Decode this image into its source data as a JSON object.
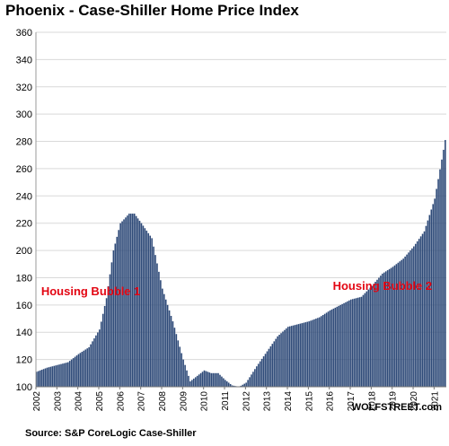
{
  "source": "Source: S&P CoreLogic Case-Shiller",
  "brand": "WOLFSTREET.com",
  "colors": {
    "bar": "#2e4a78",
    "grid": "#d9d9d9",
    "annotation": "#e30613"
  },
  "chart_data": {
    "type": "bar",
    "title": "Phoenix - Case-Shiller Home Price Index",
    "xlabel": "",
    "ylabel": "",
    "ylim": [
      100,
      360
    ],
    "yticks": [
      100,
      120,
      140,
      160,
      180,
      200,
      220,
      240,
      260,
      280,
      300,
      320,
      340,
      360
    ],
    "xticks": [
      "2002",
      "2003",
      "2004",
      "2005",
      "2006",
      "2007",
      "2008",
      "2009",
      "2010",
      "2011",
      "2012",
      "2013",
      "2014",
      "2015",
      "2016",
      "2017",
      "2018",
      "2019",
      "2020",
      "2021"
    ],
    "grid": true,
    "frequency": "monthly",
    "start": "2002-01",
    "end": "2021-07",
    "anchors": [
      [
        "2002-01",
        111
      ],
      [
        "2002-07",
        114
      ],
      [
        "2003-01",
        116
      ],
      [
        "2003-07",
        118
      ],
      [
        "2004-01",
        124
      ],
      [
        "2004-07",
        129
      ],
      [
        "2005-01",
        142
      ],
      [
        "2005-05",
        165
      ],
      [
        "2005-09",
        200
      ],
      [
        "2006-01",
        220
      ],
      [
        "2006-06",
        227
      ],
      [
        "2006-09",
        227
      ],
      [
        "2007-01",
        220
      ],
      [
        "2007-07",
        209
      ],
      [
        "2008-01",
        172
      ],
      [
        "2008-07",
        148
      ],
      [
        "2009-01",
        120
      ],
      [
        "2009-05",
        104
      ],
      [
        "2009-09",
        108
      ],
      [
        "2010-01",
        112
      ],
      [
        "2010-05",
        110
      ],
      [
        "2010-09",
        110
      ],
      [
        "2011-01",
        105
      ],
      [
        "2011-05",
        101
      ],
      [
        "2011-09",
        100
      ],
      [
        "2012-01",
        103
      ],
      [
        "2012-07",
        115
      ],
      [
        "2013-01",
        126
      ],
      [
        "2013-07",
        137
      ],
      [
        "2014-01",
        144
      ],
      [
        "2014-07",
        146
      ],
      [
        "2015-01",
        148
      ],
      [
        "2015-07",
        151
      ],
      [
        "2016-01",
        156
      ],
      [
        "2016-07",
        160
      ],
      [
        "2017-01",
        164
      ],
      [
        "2017-07",
        166
      ],
      [
        "2018-01",
        174
      ],
      [
        "2018-07",
        183
      ],
      [
        "2019-01",
        188
      ],
      [
        "2019-07",
        194
      ],
      [
        "2020-01",
        203
      ],
      [
        "2020-07",
        214
      ],
      [
        "2021-01",
        238
      ],
      [
        "2021-07",
        281
      ]
    ],
    "annotations": [
      {
        "text": "Housing Bubble 1",
        "x": "2002-04",
        "y": 167
      },
      {
        "text": "Housing Bubble 2",
        "x": "2016-03",
        "y": 171
      }
    ]
  }
}
